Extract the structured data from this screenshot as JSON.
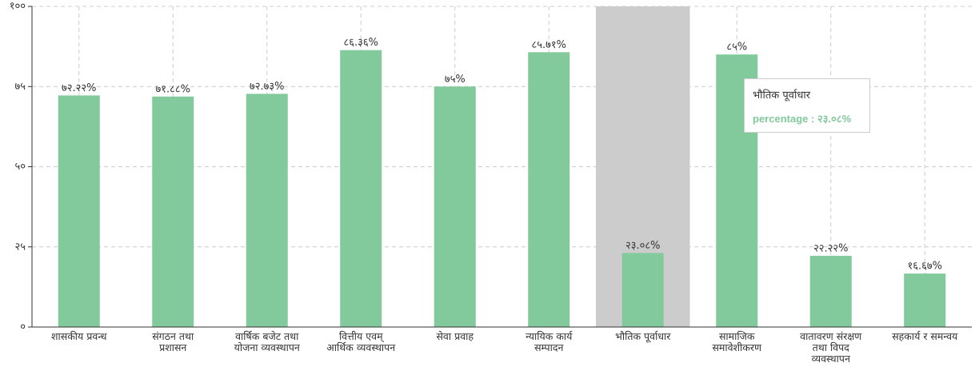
{
  "chart_data": {
    "type": "bar",
    "categories": [
      "शासकीय प्रवन्ध",
      "संगठन तथा प्रशासन",
      "वार्षिक बजेट तथा योजना व्यवस्थापन",
      "वित्तीय एवम् आर्थिक व्यवस्थापन",
      "सेवा प्रवाह",
      "न्यायिक कार्य सम्पादन",
      "भौतिक पूर्वाधार",
      "सामाजिक समावेशीकरण",
      "वातावरण संरक्षण तथा विपद व्यवस्थापन",
      "सहकार्य र समन्वय"
    ],
    "values": [
      72.22,
      71.88,
      72.73,
      86.36,
      75,
      85.71,
      23.08,
      85,
      22.22,
      16.67
    ],
    "value_labels": [
      "७२.२२%",
      "७१.८८%",
      "७२.७३%",
      "८६.३६%",
      "७५%",
      "८५.७१%",
      "२३.०८%",
      "८५%",
      "२२.२२%",
      "१६.६७%"
    ],
    "color": "#82c99b",
    "ylim": [
      0,
      100
    ],
    "yticks": [
      {
        "value": 0,
        "label": "०"
      },
      {
        "value": 25,
        "label": "२५"
      },
      {
        "value": 50,
        "label": "५०"
      },
      {
        "value": 75,
        "label": "७५"
      },
      {
        "value": 100,
        "label": "१००"
      }
    ],
    "grid": true,
    "hover_category": "भौतिक पूर्वाधार",
    "tooltip": {
      "title": "भौतिक पूर्वाधार",
      "text": "percentage : २३.०८%"
    }
  }
}
